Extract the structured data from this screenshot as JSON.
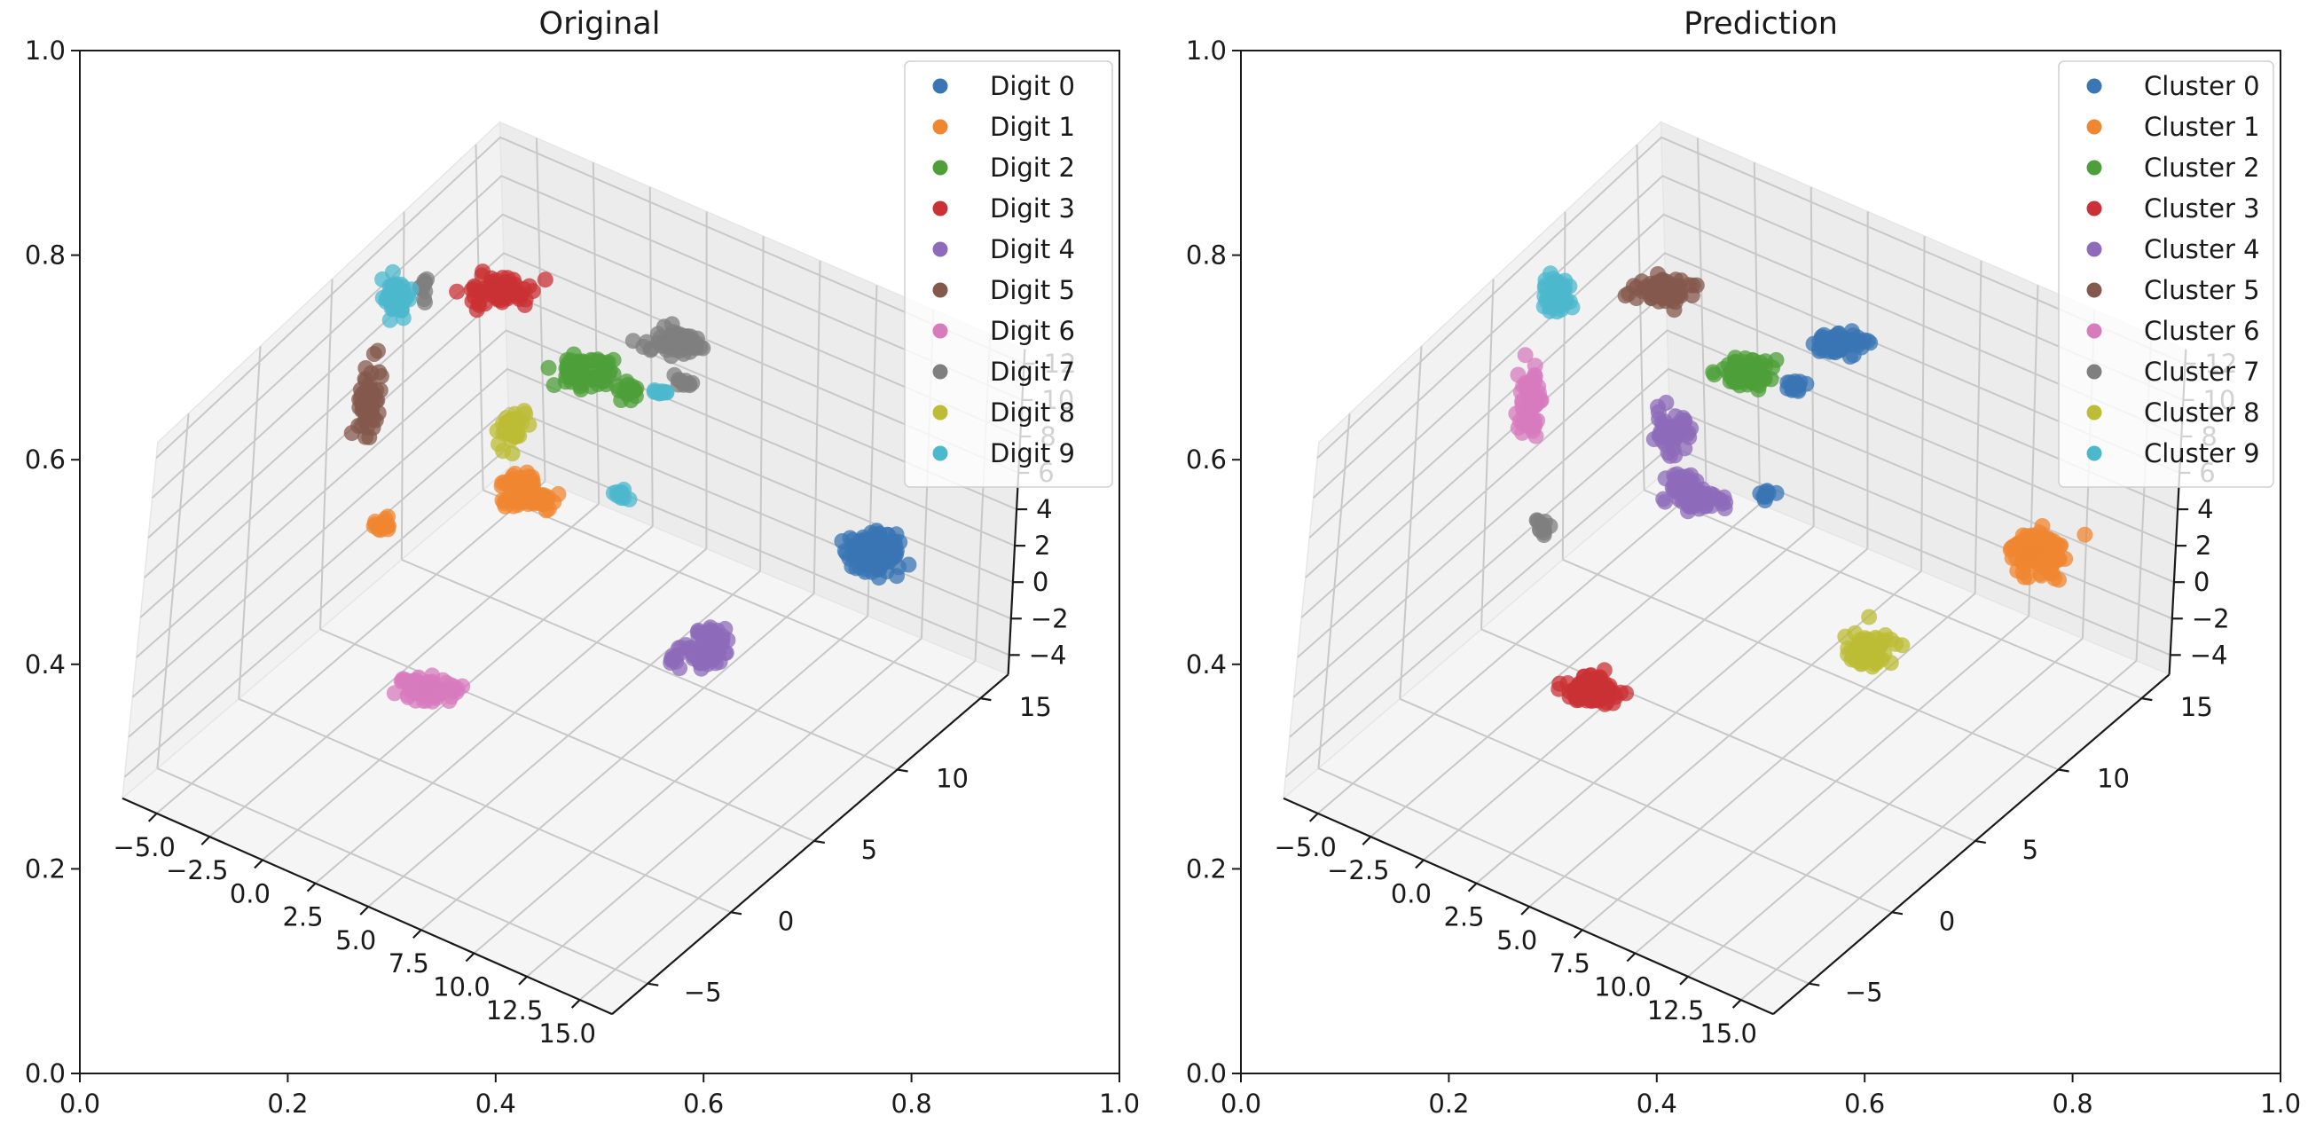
{
  "colors": [
    "#3a76b4",
    "#f08630",
    "#4e9f3a",
    "#ca3134",
    "#8e6bba",
    "#84584c",
    "#d77bbd",
    "#7f7f7f",
    "#bcbc35",
    "#4cb8ce"
  ],
  "chart_data": [
    {
      "type": "scatter",
      "projection": "3d",
      "title": "Original",
      "outer_axes": {
        "xlim": [
          0,
          1
        ],
        "ylim": [
          0,
          1
        ],
        "xticks": [
          "0.0",
          "0.2",
          "0.4",
          "0.6",
          "0.8",
          "1.0"
        ],
        "yticks": [
          "0.0",
          "0.2",
          "0.4",
          "0.6",
          "0.8",
          "1.0"
        ]
      },
      "axes3d": {
        "x_ticks": [
          "−5.0",
          "−2.5",
          "0.0",
          "2.5",
          "5.0",
          "7.5",
          "10.0",
          "12.5",
          "15.0"
        ],
        "y_ticks": [
          "−5",
          "0",
          "5",
          "10",
          "15"
        ],
        "z_ticks": [
          "−4",
          "−2",
          "0",
          "2",
          "4",
          "6",
          "8",
          "10",
          "12"
        ],
        "grid": true
      },
      "legend": {
        "placement": "top-right",
        "entries": [
          "Digit 0",
          "Digit 1",
          "Digit 2",
          "Digit 3",
          "Digit 4",
          "Digit 5",
          "Digit 6",
          "Digit 7",
          "Digit 8",
          "Digit 9"
        ]
      },
      "clusters": [
        {
          "class": 0,
          "points": [
            [
              0.765,
              0.51,
              0.025,
              0.018,
              120
            ]
          ]
        },
        {
          "class": 1,
          "points": [
            [
              0.425,
              0.575,
              0.015,
              0.012,
              45
            ],
            [
              0.44,
              0.56,
              0.025,
              0.008,
              40
            ],
            [
              0.29,
              0.536,
              0.008,
              0.007,
              14
            ]
          ]
        },
        {
          "class": 2,
          "points": [
            [
              0.485,
              0.686,
              0.024,
              0.013,
              70
            ],
            [
              0.53,
              0.668,
              0.01,
              0.007,
              18
            ]
          ]
        },
        {
          "class": 3,
          "points": [
            [
              0.405,
              0.765,
              0.027,
              0.012,
              70
            ]
          ]
        },
        {
          "class": 4,
          "points": [
            [
              0.605,
              0.415,
              0.02,
              0.018,
              70
            ],
            [
              0.574,
              0.408,
              0.008,
              0.006,
              10
            ]
          ]
        },
        {
          "class": 5,
          "points": [
            [
              0.278,
              0.655,
              0.01,
              0.03,
              70
            ]
          ]
        },
        {
          "class": 6,
          "points": [
            [
              0.335,
              0.375,
              0.023,
              0.014,
              90
            ]
          ]
        },
        {
          "class": 7,
          "points": [
            [
              0.575,
              0.714,
              0.024,
              0.01,
              70
            ],
            [
              0.578,
              0.676,
              0.007,
              0.007,
              10
            ],
            [
              0.332,
              0.763,
              0.006,
              0.01,
              10
            ]
          ]
        },
        {
          "class": 8,
          "points": [
            [
              0.414,
              0.628,
              0.013,
              0.018,
              45
            ]
          ]
        },
        {
          "class": 9,
          "points": [
            [
              0.305,
              0.76,
              0.011,
              0.015,
              55
            ],
            [
              0.557,
              0.666,
              0.007,
              0.005,
              10
            ],
            [
              0.52,
              0.565,
              0.006,
              0.005,
              10
            ]
          ]
        }
      ]
    },
    {
      "type": "scatter",
      "projection": "3d",
      "title": "Prediction",
      "outer_axes": {
        "xlim": [
          0,
          1
        ],
        "ylim": [
          0,
          1
        ],
        "xticks": [
          "0.0",
          "0.2",
          "0.4",
          "0.6",
          "0.8",
          "1.0"
        ],
        "yticks": [
          "0.0",
          "0.2",
          "0.4",
          "0.6",
          "0.8",
          "1.0"
        ]
      },
      "axes3d": {
        "x_ticks": [
          "−5.0",
          "−2.5",
          "0.0",
          "2.5",
          "5.0",
          "7.5",
          "10.0",
          "12.5",
          "15.0"
        ],
        "y_ticks": [
          "−5",
          "0",
          "5",
          "10",
          "15"
        ],
        "z_ticks": [
          "−4",
          "−2",
          "0",
          "2",
          "4",
          "6",
          "8",
          "10",
          "12"
        ],
        "grid": true
      },
      "legend": {
        "placement": "top-right",
        "entries": [
          "Cluster 0",
          "Cluster 1",
          "Cluster 2",
          "Cluster 3",
          "Cluster 4",
          "Cluster 5",
          "Cluster 6",
          "Cluster 7",
          "Cluster 8",
          "Cluster 9"
        ]
      },
      "clusters": [
        {
          "class": 0,
          "points": [
            [
              0.575,
              0.714,
              0.024,
              0.01,
              70
            ],
            [
              0.535,
              0.672,
              0.01,
              0.006,
              16
            ],
            [
              0.502,
              0.565,
              0.008,
              0.005,
              10
            ]
          ]
        },
        {
          "class": 1,
          "points": [
            [
              0.765,
              0.51,
              0.025,
              0.018,
              120
            ]
          ]
        },
        {
          "class": 2,
          "points": [
            [
              0.485,
              0.686,
              0.024,
              0.013,
              70
            ]
          ]
        },
        {
          "class": 3,
          "points": [
            [
              0.335,
              0.375,
              0.023,
              0.014,
              90
            ]
          ]
        },
        {
          "class": 4,
          "points": [
            [
              0.414,
              0.628,
              0.013,
              0.018,
              45
            ],
            [
              0.425,
              0.575,
              0.015,
              0.012,
              45
            ],
            [
              0.44,
              0.56,
              0.025,
              0.008,
              40
            ]
          ]
        },
        {
          "class": 5,
          "points": [
            [
              0.405,
              0.765,
              0.027,
              0.012,
              70
            ]
          ]
        },
        {
          "class": 6,
          "points": [
            [
              0.278,
              0.655,
              0.01,
              0.03,
              70
            ]
          ]
        },
        {
          "class": 7,
          "points": [
            [
              0.29,
              0.536,
              0.008,
              0.007,
              14
            ]
          ]
        },
        {
          "class": 8,
          "points": [
            [
              0.605,
              0.415,
              0.02,
              0.018,
              70
            ]
          ]
        },
        {
          "class": 9,
          "points": [
            [
              0.305,
              0.76,
              0.011,
              0.015,
              55
            ]
          ]
        }
      ]
    }
  ]
}
